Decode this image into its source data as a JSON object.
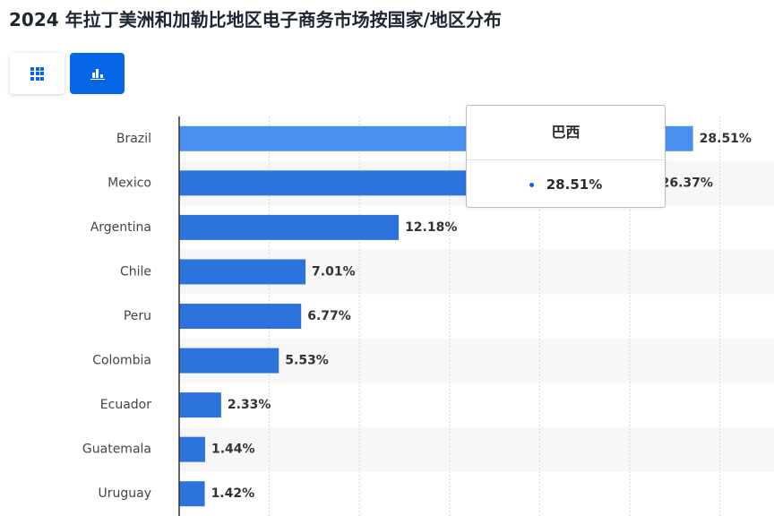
{
  "title": "2024 年拉丁美洲和加勒比地区电子商务市场按国家/地区分布",
  "toggle": {
    "table_icon": "grid-icon",
    "chart_icon": "bar-chart-icon",
    "active": "chart"
  },
  "colors": {
    "bar": "#2c73dd",
    "bar_highlight": "#4a90f0",
    "accent": "#0666e6",
    "band": "#f7f7f7",
    "gridline": "#d6d6d6",
    "axis": "#333333",
    "label": "#444444"
  },
  "chart_data": {
    "type": "bar",
    "orientation": "horizontal",
    "categories": [
      "Brazil",
      "Mexico",
      "Argentina",
      "Chile",
      "Peru",
      "Colombia",
      "Ecuador",
      "Guatemala",
      "Uruguay"
    ],
    "values": [
      28.51,
      26.37,
      12.18,
      7.01,
      6.77,
      5.53,
      2.33,
      1.44,
      1.42
    ],
    "data_labels": [
      "28.51%",
      "26.37%",
      "12.18%",
      "7.01%",
      "6.77%",
      "5.53%",
      "2.33%",
      "1.44%",
      "1.42%"
    ],
    "xlim": [
      0,
      33
    ],
    "grid": true,
    "highlighted_index": 0
  },
  "tooltip": {
    "title": "巴西",
    "value": "28.51%"
  }
}
